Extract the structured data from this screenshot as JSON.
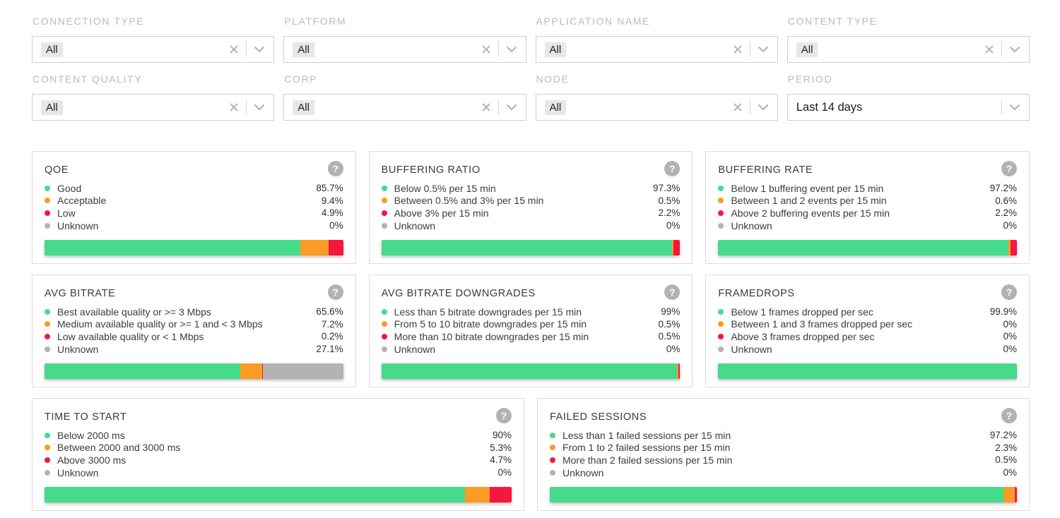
{
  "colors": {
    "good": "#45db8b",
    "warn": "#fb9b25",
    "bad": "#f5173f",
    "unknown": "#b3b3b3"
  },
  "icons": {
    "help": "?",
    "clear": "clear-x",
    "chevron": "chevron-down"
  },
  "filters": [
    {
      "label": "CONNECTION TYPE",
      "value": "All",
      "type": "multiselect"
    },
    {
      "label": "PLATFORM",
      "value": "All",
      "type": "multiselect"
    },
    {
      "label": "APPLICATION NAME",
      "value": "All",
      "type": "multiselect"
    },
    {
      "label": "CONTENT TYPE",
      "value": "All",
      "type": "multiselect"
    },
    {
      "label": "CONTENT QUALITY",
      "value": "All",
      "type": "multiselect"
    },
    {
      "label": "CORP",
      "value": "All",
      "type": "multiselect"
    },
    {
      "label": "NODE",
      "value": "All",
      "type": "multiselect"
    },
    {
      "label": "PERIOD",
      "value": "Last 14 days",
      "type": "select"
    }
  ],
  "cards": [
    {
      "title": "QOE",
      "wide": false,
      "items": [
        {
          "label": "Good",
          "value": "85.7%",
          "pct": 85.7,
          "color": "good"
        },
        {
          "label": "Acceptable",
          "value": "9.4%",
          "pct": 9.4,
          "color": "warn"
        },
        {
          "label": "Low",
          "value": "4.9%",
          "pct": 4.9,
          "color": "bad"
        },
        {
          "label": "Unknown",
          "value": "0%",
          "pct": 0,
          "color": "unknown"
        }
      ]
    },
    {
      "title": "BUFFERING RATIO",
      "wide": false,
      "items": [
        {
          "label": "Below 0.5% per 15 min",
          "value": "97.3%",
          "pct": 97.3,
          "color": "good"
        },
        {
          "label": "Between 0.5% and 3% per 15 min",
          "value": "0.5%",
          "pct": 0.5,
          "color": "warn"
        },
        {
          "label": "Above 3% per 15 min",
          "value": "2.2%",
          "pct": 2.2,
          "color": "bad"
        },
        {
          "label": "Unknown",
          "value": "0%",
          "pct": 0,
          "color": "unknown"
        }
      ]
    },
    {
      "title": "BUFFERING RATE",
      "wide": false,
      "items": [
        {
          "label": "Below 1 buffering event per 15 min",
          "value": "97.2%",
          "pct": 97.2,
          "color": "good"
        },
        {
          "label": "Between 1 and 2 events per 15 min",
          "value": "0.6%",
          "pct": 0.6,
          "color": "warn"
        },
        {
          "label": "Above 2 buffering events per 15 min",
          "value": "2.2%",
          "pct": 2.2,
          "color": "bad"
        },
        {
          "label": "Unknown",
          "value": "0%",
          "pct": 0,
          "color": "unknown"
        }
      ]
    },
    {
      "title": "AVG BITRATE",
      "wide": false,
      "items": [
        {
          "label": "Best available quality or >= 3 Mbps",
          "value": "65.6%",
          "pct": 65.6,
          "color": "good"
        },
        {
          "label": "Medium available quality or >= 1 and < 3 Mbps",
          "value": "7.2%",
          "pct": 7.2,
          "color": "warn"
        },
        {
          "label": "Low available quality or < 1 Mbps",
          "value": "0.2%",
          "pct": 0.2,
          "color": "bad"
        },
        {
          "label": "Unknown",
          "value": "27.1%",
          "pct": 27.1,
          "color": "unknown"
        }
      ]
    },
    {
      "title": "AVG BITRATE DOWNGRADES",
      "wide": false,
      "items": [
        {
          "label": "Less than 5 bitrate downgrades per 15 min",
          "value": "99%",
          "pct": 99,
          "color": "good"
        },
        {
          "label": "From 5 to 10 bitrate downgrades per 15 min",
          "value": "0.5%",
          "pct": 0.5,
          "color": "warn"
        },
        {
          "label": "More than 10 bitrate downgrades per 15 min",
          "value": "0.5%",
          "pct": 0.5,
          "color": "bad"
        },
        {
          "label": "Unknown",
          "value": "0%",
          "pct": 0,
          "color": "unknown"
        }
      ]
    },
    {
      "title": "FRAMEDROPS",
      "wide": false,
      "items": [
        {
          "label": "Below 1 frames dropped per sec",
          "value": "99.9%",
          "pct": 99.9,
          "color": "good"
        },
        {
          "label": "Between 1 and 3 frames dropped per sec",
          "value": "0%",
          "pct": 0,
          "color": "warn"
        },
        {
          "label": "Above 3 frames dropped per sec",
          "value": "0%",
          "pct": 0,
          "color": "bad"
        },
        {
          "label": "Unknown",
          "value": "0%",
          "pct": 0,
          "color": "unknown"
        }
      ]
    },
    {
      "title": "TIME TO START",
      "wide": true,
      "items": [
        {
          "label": "Below 2000 ms",
          "value": "90%",
          "pct": 90,
          "color": "good"
        },
        {
          "label": "Between 2000 and 3000 ms",
          "value": "5.3%",
          "pct": 5.3,
          "color": "warn"
        },
        {
          "label": "Above 3000 ms",
          "value": "4.7%",
          "pct": 4.7,
          "color": "bad"
        },
        {
          "label": "Unknown",
          "value": "0%",
          "pct": 0,
          "color": "unknown"
        }
      ]
    },
    {
      "title": "FAILED SESSIONS",
      "wide": true,
      "items": [
        {
          "label": "Less than 1 failed sessions per 15 min",
          "value": "97.2%",
          "pct": 97.2,
          "color": "good"
        },
        {
          "label": "From 1 to 2 failed sessions per 15 min",
          "value": "2.3%",
          "pct": 2.3,
          "color": "warn"
        },
        {
          "label": "More than 2 failed sessions per 15 min",
          "value": "0.5%",
          "pct": 0.5,
          "color": "bad"
        },
        {
          "label": "Unknown",
          "value": "0%",
          "pct": 0,
          "color": "unknown"
        }
      ]
    }
  ]
}
